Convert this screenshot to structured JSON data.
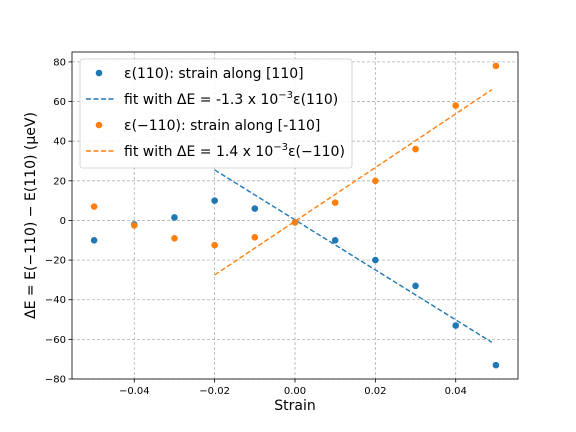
{
  "chart_data": {
    "type": "scatter",
    "xlabel": "Strain",
    "ylabel": "ΔE = E(−110) − E(110) (μeV)",
    "xlim": [
      -0.0555,
      0.0555
    ],
    "ylim": [
      -80,
      85
    ],
    "x_ticks": [
      -0.04,
      -0.02,
      0.0,
      0.02,
      0.04
    ],
    "x_tick_labels": [
      "−0.04",
      "−0.02",
      "0.00",
      "0.02",
      "0.04"
    ],
    "y_ticks": [
      -80,
      -60,
      -40,
      -20,
      0,
      20,
      40,
      60,
      80
    ],
    "y_tick_labels": [
      "−80",
      "−60",
      "−40",
      "−20",
      "0",
      "20",
      "40",
      "60",
      "80"
    ],
    "grid": true,
    "legend_position": "upper-left",
    "series": [
      {
        "name": "ε(110): strain along [110]",
        "color": "#1f77b4",
        "marker": "circle",
        "x": [
          -0.05,
          -0.04,
          -0.03,
          -0.02,
          -0.01,
          0.0,
          0.01,
          0.02,
          0.03,
          0.04,
          0.05
        ],
        "y": [
          -10,
          -2,
          1.5,
          10,
          6,
          -1,
          -10,
          -20,
          -33,
          -53,
          -73
        ]
      },
      {
        "name": "fit with ΔE = -1.3 x 10⁻³ε(110)",
        "color": "#1f77b4",
        "line_style": "dashed",
        "x": [
          -0.02,
          0.049
        ],
        "y": [
          25.5,
          -61.5
        ]
      },
      {
        "name": "ε(−110): strain along [-110]",
        "color": "#ff7f0e",
        "marker": "circle",
        "x": [
          -0.05,
          -0.04,
          -0.03,
          -0.02,
          -0.01,
          0.0,
          0.01,
          0.02,
          0.03,
          0.04,
          0.05
        ],
        "y": [
          7,
          -2.5,
          -9,
          -12.5,
          -8.5,
          -1,
          9,
          20,
          36,
          58,
          78
        ]
      },
      {
        "name": "fit with ΔE = 1.4 x 10⁻³ε(−110)",
        "color": "#ff7f0e",
        "line_style": "dashed",
        "x": [
          -0.02,
          0.049
        ],
        "y": [
          -27.5,
          66
        ]
      }
    ],
    "legend": [
      {
        "series": 0,
        "kind": "marker",
        "pre": "ε(110): strain along [110]",
        "sup": "",
        "post": ""
      },
      {
        "series": 1,
        "kind": "line",
        "pre": "fit with ΔE = -1.3 x 10",
        "sup": "−3",
        "post": "ε(110)"
      },
      {
        "series": 2,
        "kind": "marker",
        "pre": "ε(−110): strain along [-110]",
        "sup": "",
        "post": ""
      },
      {
        "series": 3,
        "kind": "line",
        "pre": "fit with ΔE = 1.4 x 10",
        "sup": "−3",
        "post": "ε(−110)"
      }
    ]
  }
}
